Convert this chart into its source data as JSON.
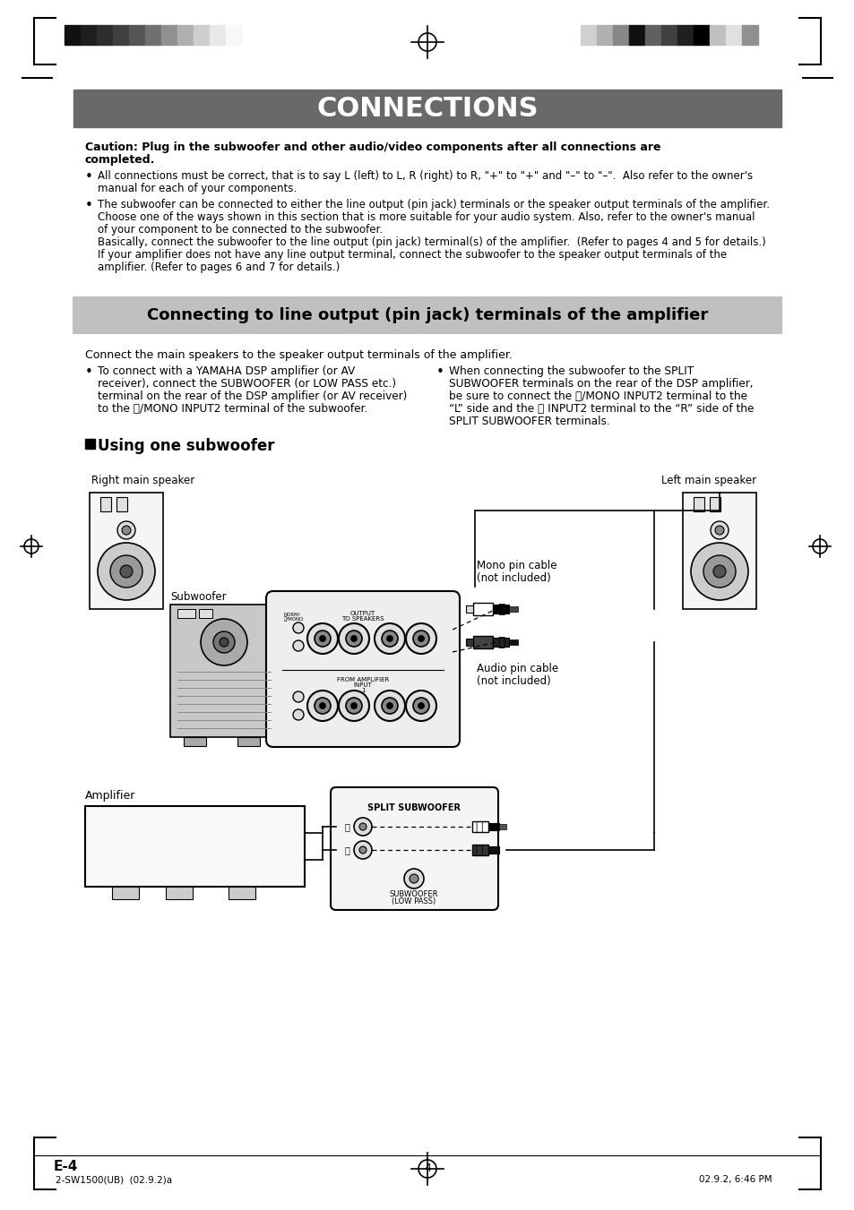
{
  "bg_color": "#ffffff",
  "header_bar_color": "#696969",
  "header_text": "CONNECTIONS",
  "header_text_color": "#ffffff",
  "subheader_bg": "#c0c0c0",
  "subheader_text": "Connecting to line output (pin jack) terminals of the amplifier",
  "footer_page": "E-4",
  "footer_left": "2-SW1500(UB)  (02.9.2)a",
  "footer_center": "4",
  "footer_right": "02.9.2, 6:46 PM",
  "bar_colors_left": [
    "#111111",
    "#1e1e1e",
    "#2d2d2d",
    "#404040",
    "#555555",
    "#707070",
    "#909090",
    "#b0b0b0",
    "#cecece",
    "#e8e8e8",
    "#f8f8f8"
  ],
  "bar_colors_right": [
    "#d0d0d0",
    "#b0b0b0",
    "#888888",
    "#101010",
    "#606060",
    "#404040",
    "#202020",
    "#000000",
    "#c0c0c0",
    "#e0e0e0",
    "#909090"
  ]
}
